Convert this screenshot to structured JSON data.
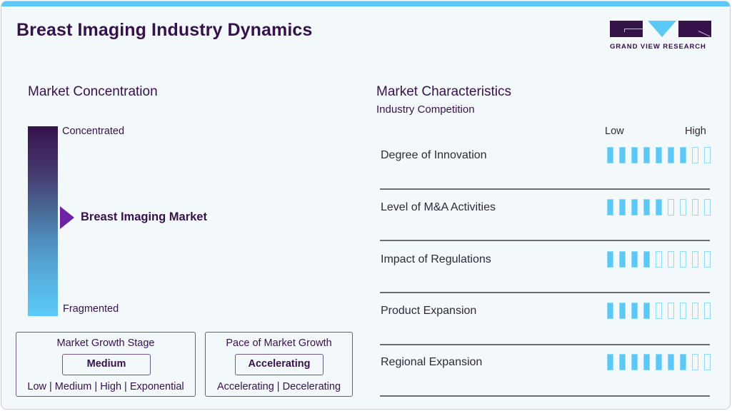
{
  "header": {
    "title": "Breast Imaging Industry Dynamics",
    "logo_text": "GRAND VIEW RESEARCH",
    "accent_color": "#5bc8f5",
    "brand_color": "#35124a"
  },
  "market_concentration": {
    "title": "Market Concentration",
    "top_label": "Concentrated",
    "bottom_label": "Fragmented",
    "marker_label": "Breast Imaging Market",
    "marker_position_pct": 48
  },
  "growth_stage": {
    "title": "Market Growth Stage",
    "value": "Medium",
    "options_text": "Low | Medium | High | Exponential",
    "options": [
      "Low",
      "Medium",
      "High",
      "Exponential"
    ]
  },
  "growth_pace": {
    "title": "Pace of Market Growth",
    "value": "Accelerating",
    "options_text": "Accelerating | Decelerating",
    "options": [
      "Accelerating",
      "Decelerating"
    ]
  },
  "market_characteristics": {
    "title": "Market Characteristics",
    "subtitle": "Industry Competition",
    "scale_low": "Low",
    "scale_high": "High",
    "max_level": 9,
    "rows": [
      {
        "label": "Degree of Innovation",
        "level": 7
      },
      {
        "label": "Level of M&A Activities",
        "level": 5
      },
      {
        "label": "Impact of Regulations",
        "level": 4
      },
      {
        "label": "Product Expansion",
        "level": 4
      },
      {
        "label": "Regional Expansion",
        "level": 7
      }
    ]
  }
}
